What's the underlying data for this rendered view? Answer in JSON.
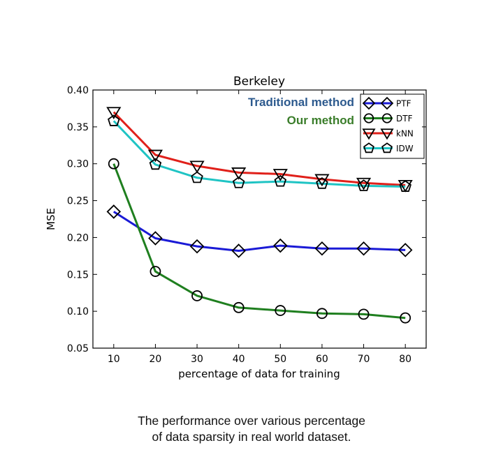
{
  "chart_data": {
    "type": "line",
    "title": "Berkeley",
    "xlabel": "percentage of data for training",
    "ylabel": "MSE",
    "x": [
      10,
      20,
      30,
      40,
      50,
      60,
      70,
      80
    ],
    "xlim": [
      5,
      85
    ],
    "ylim": [
      0.05,
      0.4
    ],
    "xticks": [
      "10",
      "20",
      "30",
      "40",
      "50",
      "60",
      "70",
      "80"
    ],
    "yticks": [
      "0.05",
      "0.10",
      "0.15",
      "0.20",
      "0.25",
      "0.30",
      "0.35",
      "0.40"
    ],
    "grid": false,
    "legend_position": "top-right",
    "series": [
      {
        "name": "PTF",
        "color": "#1a1ad6",
        "marker": "diamond",
        "values": [
          0.235,
          0.199,
          0.188,
          0.182,
          0.189,
          0.185,
          0.185,
          0.183
        ]
      },
      {
        "name": "DTF",
        "color": "#1f7f1f",
        "marker": "circle",
        "values": [
          0.3,
          0.154,
          0.121,
          0.105,
          0.101,
          0.097,
          0.096,
          0.091
        ]
      },
      {
        "name": "kNN",
        "color": "#e0201a",
        "marker": "triangle-down",
        "values": [
          0.37,
          0.312,
          0.297,
          0.288,
          0.286,
          0.279,
          0.274,
          0.271
        ]
      },
      {
        "name": "IDW",
        "color": "#1fc4c4",
        "marker": "pentagon",
        "values": [
          0.358,
          0.299,
          0.281,
          0.274,
          0.276,
          0.273,
          0.27,
          0.269
        ]
      }
    ],
    "annotations": [
      {
        "text": "Traditional method",
        "color": "#2d5a8e"
      },
      {
        "text": "Our method",
        "color": "#3a7d2a"
      }
    ]
  },
  "caption": {
    "line1": "The performance over various percentage",
    "line2": "of data sparsity in real world dataset."
  }
}
